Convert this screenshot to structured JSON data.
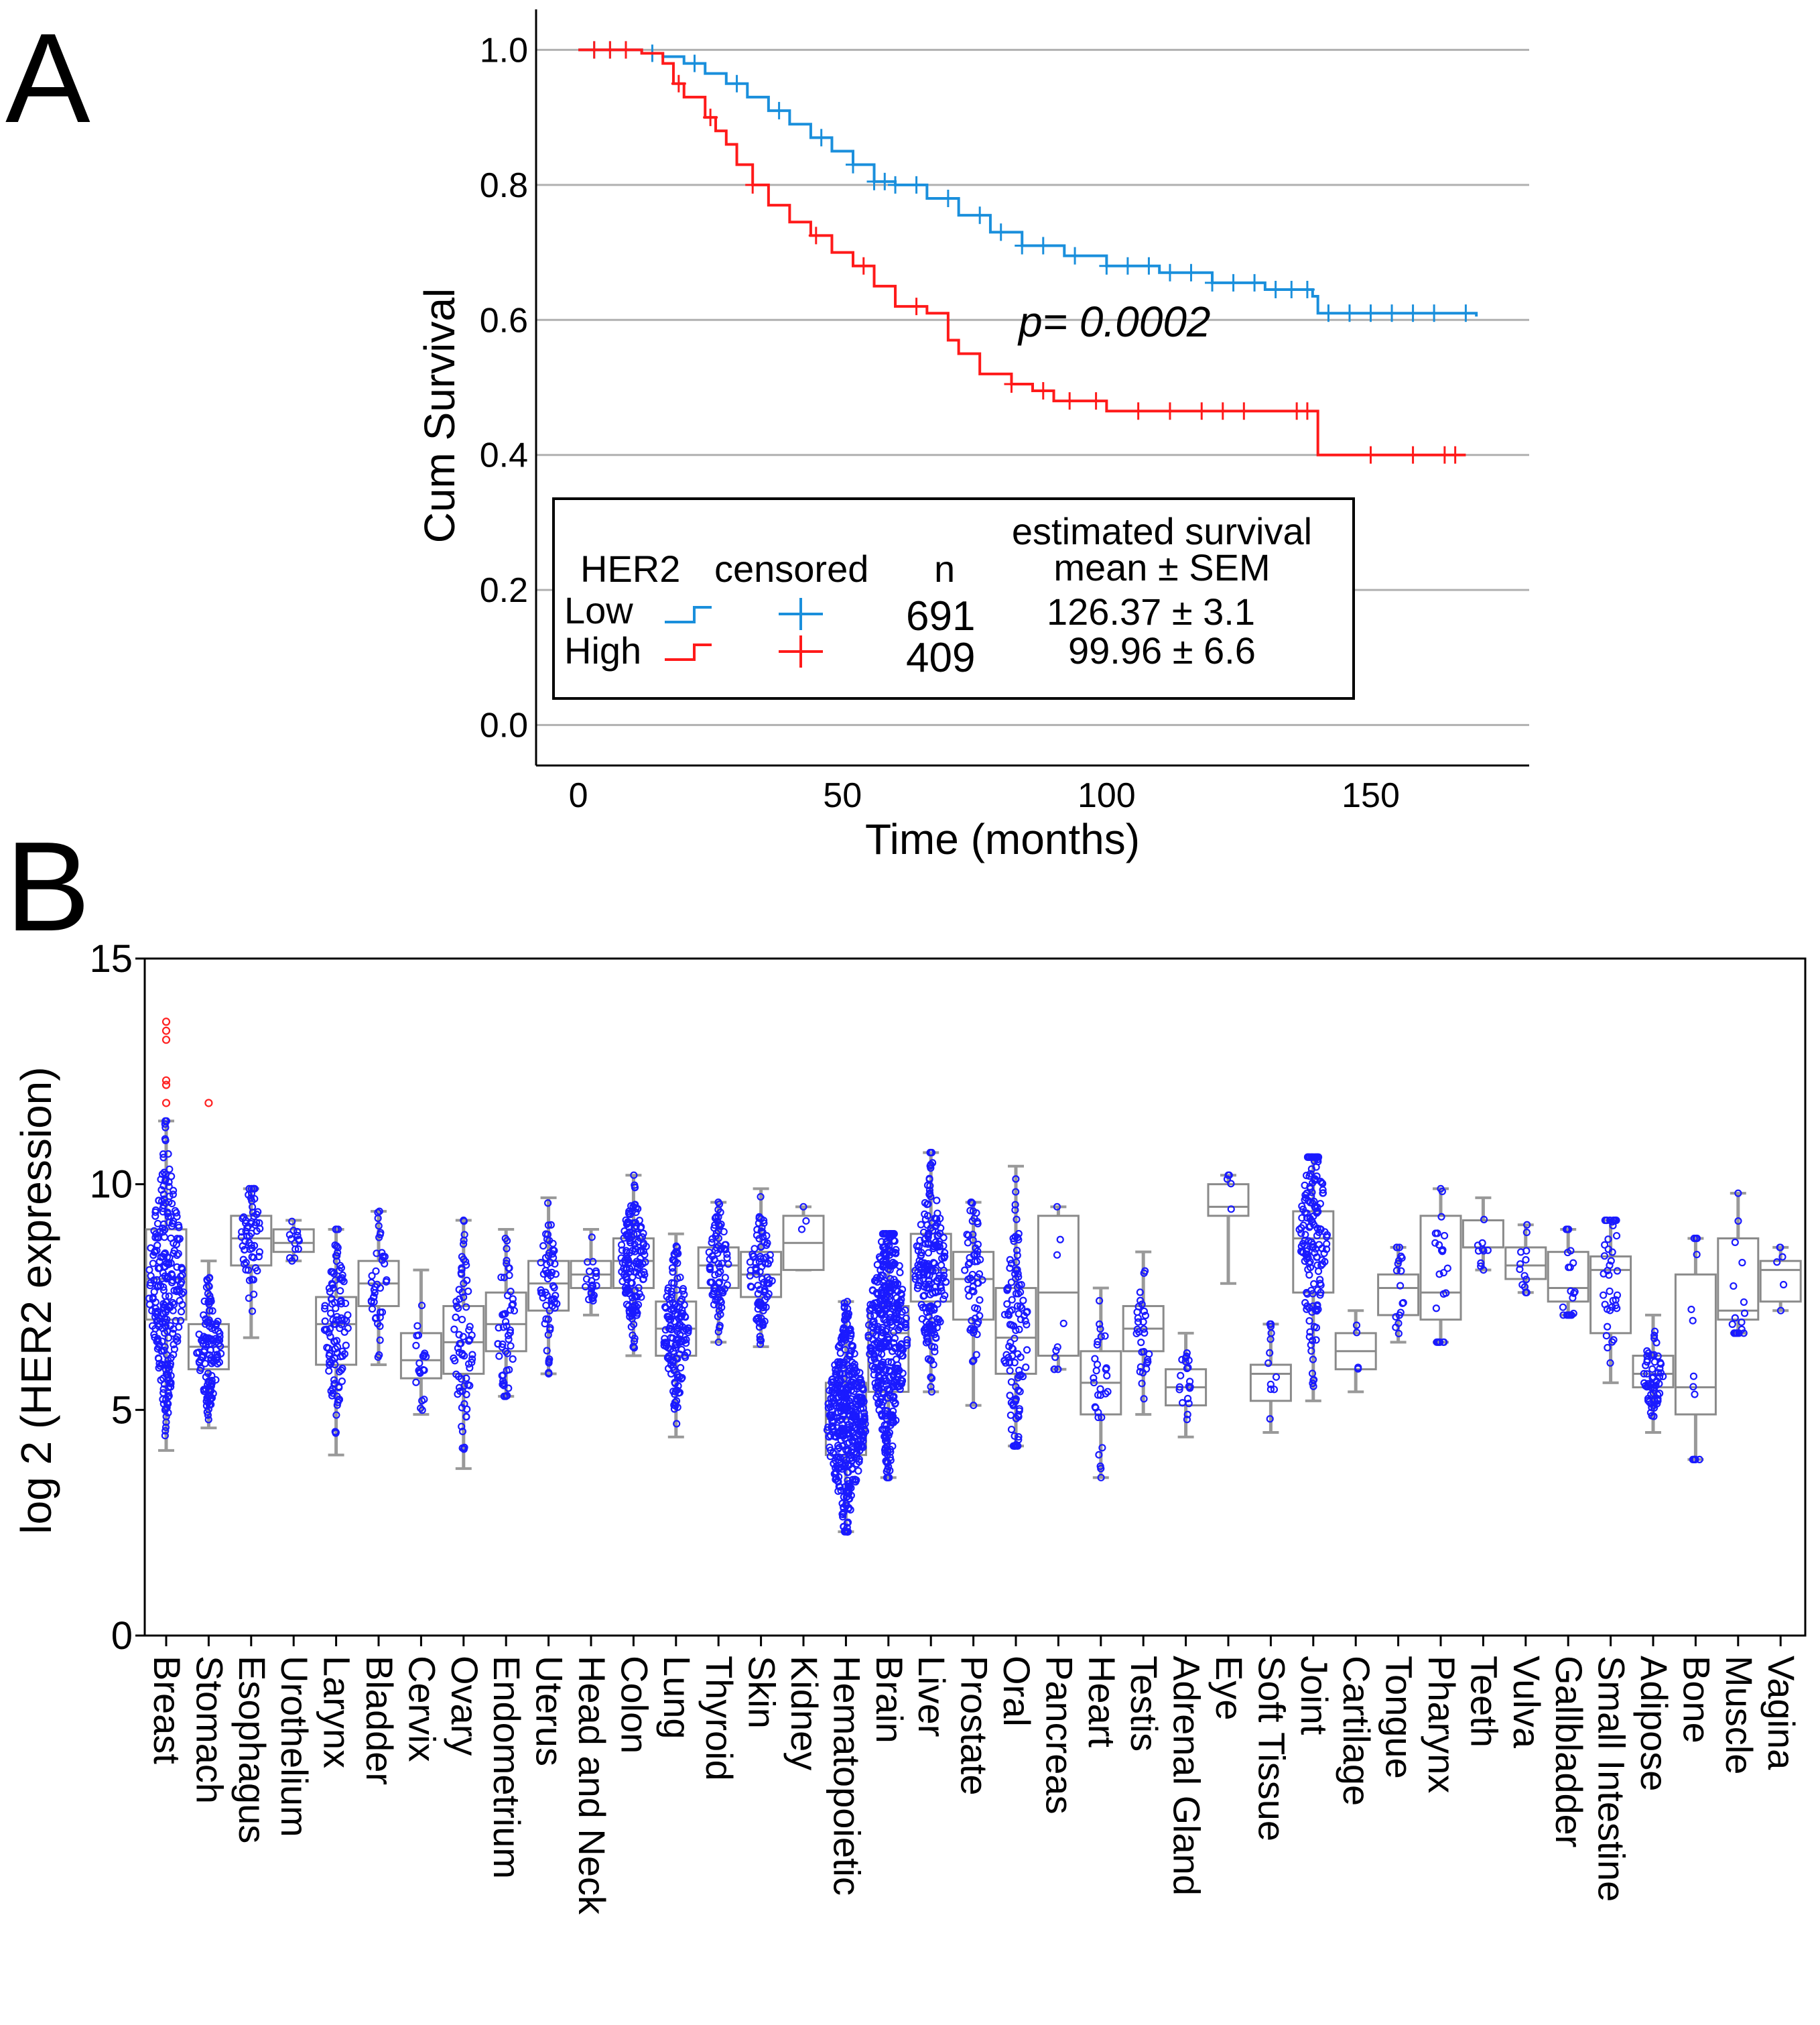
{
  "figure": {
    "panel_a_label": "A",
    "panel_b_label": "B"
  },
  "chart_data": [
    {
      "type": "line",
      "title": "",
      "xlabel": "Time (months)",
      "ylabel": "Cum Survival",
      "xlim": [
        -8,
        180
      ],
      "ylim": [
        -0.06,
        1.06
      ],
      "xticks": [
        "0",
        "50",
        "100",
        "150"
      ],
      "xtick_values": [
        0,
        50,
        100,
        150
      ],
      "yticks": [
        "1.0",
        "0.8",
        "0.6",
        "0.4",
        "0.2",
        "0.0"
      ],
      "ytick_values": [
        1.0,
        0.8,
        0.6,
        0.4,
        0.2,
        0.0
      ],
      "grid": true,
      "annotation": "p= 0.0002",
      "legend": {
        "position": "bottom-left",
        "group_header": "HER2",
        "censored_header": "censored",
        "n_header": "n",
        "survival_header_line1": "estimated survival",
        "survival_header_line2": "mean ± SEM",
        "rows": [
          {
            "label": "Low",
            "n": "691",
            "survival": "126.37 ± 3.1",
            "color": "#1a8fdc"
          },
          {
            "label": "High",
            "n": "409",
            "survival": "99.96 ± 6.6",
            "color": "#ff1a1a"
          }
        ]
      },
      "series": [
        {
          "name": "Low",
          "color": "#1a8fdc",
          "x": [
            0,
            12,
            16,
            20,
            24,
            28,
            32,
            36,
            40,
            44,
            48,
            52,
            56,
            60,
            66,
            72,
            78,
            84,
            92,
            100,
            110,
            120,
            130,
            139,
            140,
            170
          ],
          "y": [
            1.0,
            0.995,
            0.99,
            0.98,
            0.965,
            0.95,
            0.93,
            0.91,
            0.89,
            0.87,
            0.85,
            0.83,
            0.805,
            0.8,
            0.78,
            0.755,
            0.73,
            0.71,
            0.695,
            0.68,
            0.67,
            0.655,
            0.645,
            0.635,
            0.61,
            0.605
          ],
          "censored_x": [
            3,
            6,
            9,
            14,
            22,
            30,
            38,
            46,
            52,
            56,
            58,
            60,
            64,
            70,
            76,
            80,
            84,
            88,
            94,
            100,
            104,
            108,
            112,
            116,
            120,
            124,
            128,
            132,
            135,
            138,
            142,
            146,
            150,
            154,
            158,
            162,
            168
          ]
        },
        {
          "name": "High",
          "color": "#ff1a1a",
          "x": [
            0,
            12,
            16,
            18,
            20,
            24,
            26,
            28,
            30,
            33,
            36,
            40,
            44,
            48,
            52,
            56,
            60,
            66,
            70,
            72,
            76,
            82,
            86,
            90,
            100,
            140,
            168
          ],
          "y": [
            1.0,
            0.995,
            0.98,
            0.95,
            0.93,
            0.9,
            0.88,
            0.86,
            0.83,
            0.8,
            0.77,
            0.745,
            0.725,
            0.7,
            0.68,
            0.65,
            0.62,
            0.61,
            0.57,
            0.55,
            0.52,
            0.505,
            0.495,
            0.48,
            0.465,
            0.4,
            0.4
          ],
          "censored_x": [
            3,
            6,
            9,
            19,
            25,
            33,
            45,
            54,
            64,
            82,
            88,
            93,
            98,
            106,
            112,
            118,
            122,
            126,
            136,
            138,
            150,
            158,
            164,
            166
          ]
        }
      ]
    },
    {
      "type": "box",
      "title": "",
      "xlabel": "",
      "ylabel": "log 2 (HER2 expression)",
      "ylim": [
        0,
        15
      ],
      "yticks": [
        "15",
        "10",
        "5",
        "0"
      ],
      "ytick_values": [
        15,
        10,
        5,
        0
      ],
      "grid": false,
      "outlier_color": "#ff2020",
      "point_color": "#1a1aff",
      "categories": [
        "Breast",
        "Stomach",
        "Esophagus",
        "Urothelium",
        "Larynx",
        "Bladder",
        "Cervix",
        "Ovary",
        "Endometrium",
        "Uterus",
        "Head and Neck",
        "Colon",
        "Lung",
        "Thyroid",
        "Skin",
        "Kidney",
        "Hematopoietic",
        "Brain",
        "Liver",
        "Prostate",
        "Oral",
        "Pancreas",
        "Heart",
        "Testis",
        "Adrenal Gland",
        "Eye",
        "Soft Tissue",
        "Joint",
        "Cartilage",
        "Tongue",
        "Pharynx",
        "Teeth",
        "Vulva",
        "Gallbladder",
        "Small Intestine",
        "Adipose",
        "Bone",
        "Muscle",
        "Vagina"
      ],
      "boxes": [
        {
          "min": 4.1,
          "q1": 7.0,
          "median": 7.9,
          "q3": 9.0,
          "max": 11.4,
          "n": 260,
          "outliers": [
            11.8,
            12.2,
            12.3,
            13.2,
            13.4,
            13.6
          ]
        },
        {
          "min": 4.6,
          "q1": 5.9,
          "median": 6.4,
          "q3": 6.9,
          "max": 8.3,
          "n": 120,
          "outliers": [
            11.8
          ]
        },
        {
          "min": 6.6,
          "q1": 8.2,
          "median": 8.8,
          "q3": 9.3,
          "max": 9.9,
          "n": 60,
          "outliers": []
        },
        {
          "min": 8.3,
          "q1": 8.5,
          "median": 8.7,
          "q3": 9.0,
          "max": 9.2,
          "n": 14,
          "outliers": []
        },
        {
          "min": 4.0,
          "q1": 6.0,
          "median": 6.9,
          "q3": 7.5,
          "max": 9.0,
          "n": 110,
          "outliers": []
        },
        {
          "min": 6.0,
          "q1": 7.3,
          "median": 7.8,
          "q3": 8.3,
          "max": 9.4,
          "n": 40,
          "outliers": []
        },
        {
          "min": 4.9,
          "q1": 5.7,
          "median": 6.1,
          "q3": 6.7,
          "max": 8.1,
          "n": 20,
          "outliers": []
        },
        {
          "min": 3.7,
          "q1": 5.8,
          "median": 6.5,
          "q3": 7.3,
          "max": 9.2,
          "n": 70,
          "outliers": []
        },
        {
          "min": 5.3,
          "q1": 6.3,
          "median": 6.9,
          "q3": 7.6,
          "max": 9.0,
          "n": 50,
          "outliers": []
        },
        {
          "min": 5.8,
          "q1": 7.2,
          "median": 7.8,
          "q3": 8.3,
          "max": 9.7,
          "n": 60,
          "outliers": []
        },
        {
          "min": 7.1,
          "q1": 7.7,
          "median": 8.0,
          "q3": 8.3,
          "max": 9.0,
          "n": 22,
          "outliers": []
        },
        {
          "min": 6.2,
          "q1": 7.7,
          "median": 8.3,
          "q3": 8.8,
          "max": 10.2,
          "n": 150,
          "outliers": []
        },
        {
          "min": 4.4,
          "q1": 6.2,
          "median": 6.8,
          "q3": 7.4,
          "max": 8.9,
          "n": 140,
          "outliers": []
        },
        {
          "min": 6.5,
          "q1": 7.7,
          "median": 8.2,
          "q3": 8.6,
          "max": 9.6,
          "n": 80,
          "outliers": []
        },
        {
          "min": 6.4,
          "q1": 7.5,
          "median": 8.0,
          "q3": 8.5,
          "max": 9.9,
          "n": 90,
          "outliers": []
        },
        {
          "min": 8.1,
          "q1": 8.1,
          "median": 8.7,
          "q3": 9.3,
          "max": 9.5,
          "n": 3,
          "outliers": []
        },
        {
          "min": 2.3,
          "q1": 4.0,
          "median": 4.8,
          "q3": 5.6,
          "max": 7.4,
          "n": 420,
          "outliers": []
        },
        {
          "min": 3.5,
          "q1": 5.4,
          "median": 6.7,
          "q3": 7.3,
          "max": 8.9,
          "n": 420,
          "outliers": []
        },
        {
          "min": 5.4,
          "q1": 7.4,
          "median": 8.1,
          "q3": 8.9,
          "max": 10.7,
          "n": 200,
          "outliers": []
        },
        {
          "min": 5.1,
          "q1": 7.0,
          "median": 7.9,
          "q3": 8.5,
          "max": 9.6,
          "n": 60,
          "outliers": []
        },
        {
          "min": 4.2,
          "q1": 5.8,
          "median": 6.6,
          "q3": 7.7,
          "max": 10.4,
          "n": 110,
          "outliers": []
        },
        {
          "min": 5.9,
          "q1": 6.2,
          "median": 7.6,
          "q3": 9.3,
          "max": 9.5,
          "n": 10,
          "outliers": []
        },
        {
          "min": 3.5,
          "q1": 4.9,
          "median": 5.6,
          "q3": 6.3,
          "max": 7.7,
          "n": 30,
          "outliers": []
        },
        {
          "min": 4.9,
          "q1": 6.3,
          "median": 6.8,
          "q3": 7.3,
          "max": 8.5,
          "n": 30,
          "outliers": []
        },
        {
          "min": 4.4,
          "q1": 5.1,
          "median": 5.5,
          "q3": 5.9,
          "max": 6.7,
          "n": 20,
          "outliers": []
        },
        {
          "min": 7.8,
          "q1": 9.3,
          "median": 9.5,
          "q3": 10.0,
          "max": 10.2,
          "n": 5,
          "outliers": []
        },
        {
          "min": 4.5,
          "q1": 5.2,
          "median": 5.8,
          "q3": 6.0,
          "max": 6.9,
          "n": 12,
          "outliers": []
        },
        {
          "min": 5.2,
          "q1": 7.6,
          "median": 8.8,
          "q3": 9.4,
          "max": 10.6,
          "n": 160,
          "outliers": []
        },
        {
          "min": 5.4,
          "q1": 5.9,
          "median": 6.3,
          "q3": 6.7,
          "max": 7.2,
          "n": 4,
          "outliers": []
        },
        {
          "min": 6.5,
          "q1": 7.1,
          "median": 7.7,
          "q3": 8.0,
          "max": 8.6,
          "n": 18,
          "outliers": []
        },
        {
          "min": 6.5,
          "q1": 7.0,
          "median": 7.6,
          "q3": 9.3,
          "max": 9.9,
          "n": 24,
          "outliers": []
        },
        {
          "min": 8.1,
          "q1": 8.6,
          "median": 8.6,
          "q3": 9.2,
          "max": 9.7,
          "n": 10,
          "outliers": []
        },
        {
          "min": 7.6,
          "q1": 7.9,
          "median": 8.2,
          "q3": 8.6,
          "max": 9.1,
          "n": 14,
          "outliers": []
        },
        {
          "min": 7.1,
          "q1": 7.4,
          "median": 7.7,
          "q3": 8.5,
          "max": 9.0,
          "n": 20,
          "outliers": []
        },
        {
          "min": 5.6,
          "q1": 6.7,
          "median": 8.1,
          "q3": 8.4,
          "max": 9.2,
          "n": 40,
          "outliers": []
        },
        {
          "min": 4.5,
          "q1": 5.5,
          "median": 5.8,
          "q3": 6.2,
          "max": 7.1,
          "n": 60,
          "outliers": []
        },
        {
          "min": 3.9,
          "q1": 4.9,
          "median": 5.5,
          "q3": 8.0,
          "max": 8.8,
          "n": 14,
          "outliers": []
        },
        {
          "min": 6.7,
          "q1": 7.0,
          "median": 7.2,
          "q3": 8.8,
          "max": 9.8,
          "n": 18,
          "outliers": []
        },
        {
          "min": 7.2,
          "q1": 7.4,
          "median": 8.1,
          "q3": 8.3,
          "max": 8.6,
          "n": 6,
          "outliers": []
        }
      ]
    }
  ]
}
